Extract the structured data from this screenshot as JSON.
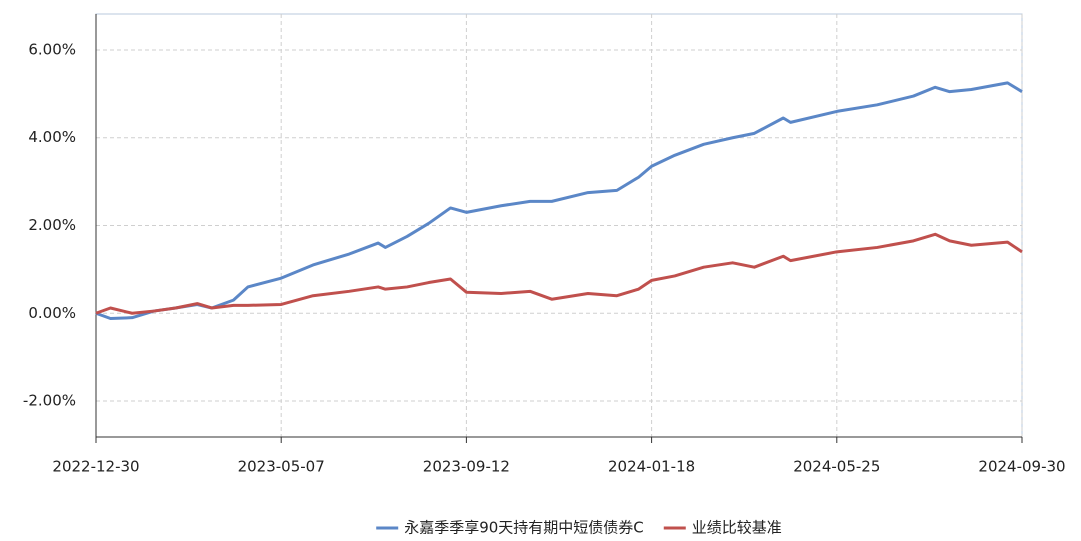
{
  "chart_data": {
    "type": "line",
    "x": [
      "2022-12-30",
      "2023-01-09",
      "2023-01-24",
      "2023-02-08",
      "2023-02-23",
      "2023-03-10",
      "2023-03-20",
      "2023-04-04",
      "2023-04-14",
      "2023-05-07",
      "2023-05-29",
      "2023-06-23",
      "2023-07-13",
      "2023-07-18",
      "2023-08-02",
      "2023-08-17",
      "2023-09-01",
      "2023-09-12",
      "2023-10-06",
      "2023-10-26",
      "2023-11-10",
      "2023-12-05",
      "2023-12-25",
      "2024-01-09",
      "2024-01-18",
      "2024-02-03",
      "2024-02-23",
      "2024-03-14",
      "2024-03-29",
      "2024-04-18",
      "2024-04-23",
      "2024-05-25",
      "2024-06-22",
      "2024-07-17",
      "2024-08-01",
      "2024-08-11",
      "2024-08-26",
      "2024-09-20",
      "2024-09-30"
    ],
    "series": [
      {
        "name": "永嘉季季享90天持有期中短债债券C",
        "color": "#5b87c7",
        "values": [
          0,
          -0.12,
          -0.1,
          0.05,
          0.12,
          0.2,
          0.12,
          0.3,
          0.6,
          0.8,
          1.1,
          1.35,
          1.6,
          1.5,
          1.75,
          2.05,
          2.4,
          2.3,
          2.45,
          2.55,
          2.55,
          2.75,
          2.8,
          3.1,
          3.35,
          3.6,
          3.85,
          4.0,
          4.1,
          4.45,
          4.35,
          4.6,
          4.75,
          4.95,
          5.15,
          5.05,
          5.1,
          5.25,
          5.05
        ]
      },
      {
        "name": "业绩比较基准",
        "color": "#c0504d",
        "values": [
          0,
          0.12,
          0,
          0.05,
          0.12,
          0.22,
          0.12,
          0.18,
          0.18,
          0.2,
          0.4,
          0.5,
          0.6,
          0.55,
          0.6,
          0.7,
          0.78,
          0.48,
          0.45,
          0.5,
          0.32,
          0.45,
          0.4,
          0.55,
          0.75,
          0.85,
          1.05,
          1.15,
          1.05,
          1.3,
          1.2,
          1.4,
          1.5,
          1.65,
          1.8,
          1.65,
          1.55,
          1.62,
          1.4
        ]
      }
    ],
    "xlim": [
      "2022-12-30",
      "2024-09-30"
    ],
    "xticks": [
      "2022-12-30",
      "2023-05-07",
      "2023-09-12",
      "2024-01-18",
      "2024-05-25",
      "2024-09-30"
    ],
    "ylim": [
      -2.82,
      6.82
    ],
    "yticks": [
      {
        "value": -2,
        "label": "-2.00%"
      },
      {
        "value": 0,
        "label": "0.00%"
      },
      {
        "value": 2,
        "label": "2.00%"
      },
      {
        "value": 4,
        "label": "4.00%"
      },
      {
        "value": 6,
        "label": "6.00%"
      }
    ],
    "grid": true,
    "legend": "bottom"
  }
}
